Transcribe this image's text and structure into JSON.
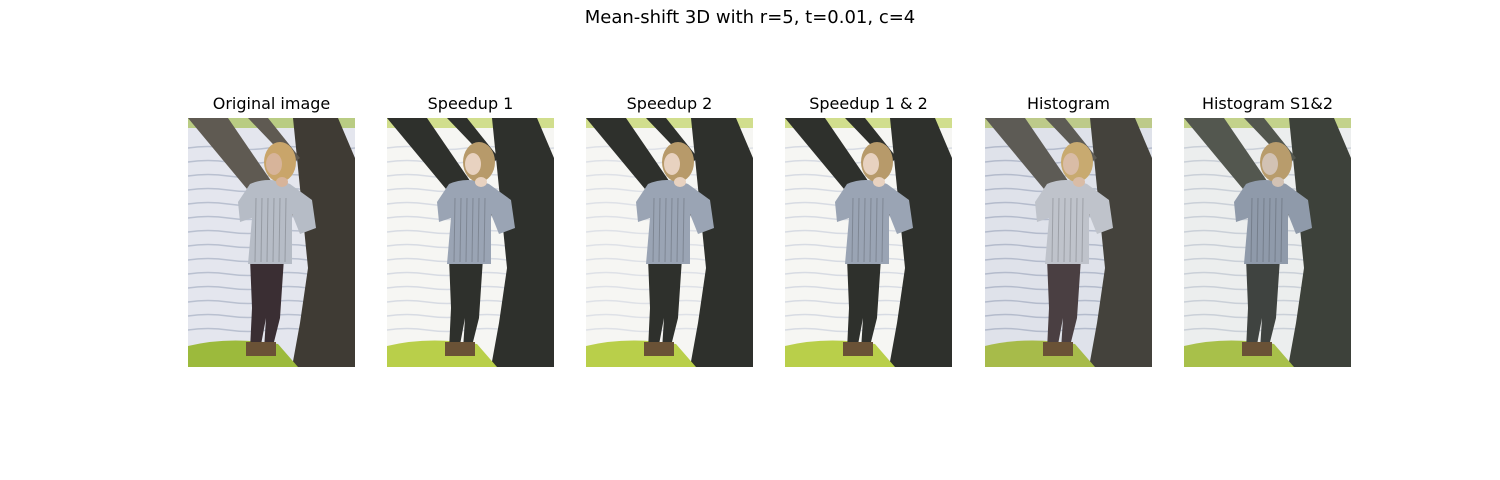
{
  "figure": {
    "title": "Mean-shift 3D with r=5, t=0.01, c=4"
  },
  "panels": [
    {
      "title": "Original image",
      "variant": "original",
      "colors": {
        "tree": "#5f5a52",
        "trunk": "#3f3b34",
        "water": "#e4e6ee",
        "sweater": "#b6bcc6",
        "legs": "#3a2e33",
        "grass": "#9cba3c",
        "hair": "#c9a56a",
        "skin": "#d7b49a",
        "ripple": "#aeb6c8"
      }
    },
    {
      "title": "Speedup 1",
      "variant": "segmented",
      "colors": {
        "tree": "#2e302c",
        "trunk": "#2e302c",
        "water": "#f6f6f3",
        "sweater": "#9aa4b4",
        "legs": "#2e302c",
        "grass": "#b9cf4a",
        "hair": "#b79a6a",
        "skin": "#e8d2c0",
        "ripple": "#cfd5df"
      }
    },
    {
      "title": "Speedup 2",
      "variant": "segmented",
      "colors": {
        "tree": "#2e302c",
        "trunk": "#2e302c",
        "water": "#f6f6f3",
        "sweater": "#9aa4b4",
        "legs": "#2e302c",
        "grass": "#b9cf4a",
        "hair": "#b79a6a",
        "skin": "#e8d2c0",
        "ripple": "#d8dce4"
      }
    },
    {
      "title": "Speedup 1 & 2",
      "variant": "segmented",
      "colors": {
        "tree": "#2e302c",
        "trunk": "#2e302c",
        "water": "#f6f6f3",
        "sweater": "#9aa4b4",
        "legs": "#2e302c",
        "grass": "#b9cf4a",
        "hair": "#b79a6a",
        "skin": "#e8d2c0",
        "ripple": "#cfd5df"
      }
    },
    {
      "title": "Histogram",
      "variant": "histogram",
      "colors": {
        "tree": "#5d5b55",
        "trunk": "#44423c",
        "water": "#dfe2ea",
        "sweater": "#bfc3cb",
        "legs": "#4a3f42",
        "grass": "#a7bb4a",
        "hair": "#c8aa70",
        "skin": "#d9bca6",
        "ripple": "#a9b2c4"
      }
    },
    {
      "title": "Histogram S1&2",
      "variant": "histogram2",
      "colors": {
        "tree": "#53574f",
        "trunk": "#3d413a",
        "water": "#eceeee",
        "sweater": "#8f9aaa",
        "legs": "#3f4340",
        "grass": "#a8c04a",
        "hair": "#b89c6c",
        "skin": "#d2c2b4",
        "ripple": "#c2c8d2"
      }
    }
  ]
}
